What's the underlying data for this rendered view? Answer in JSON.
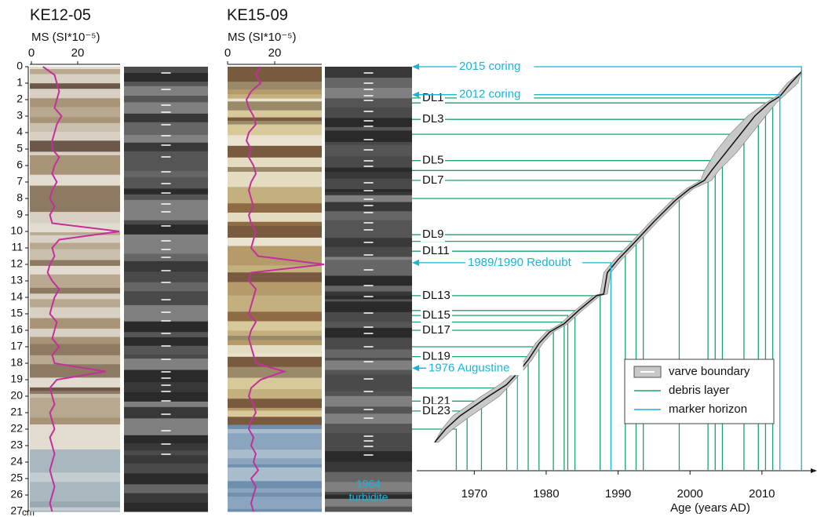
{
  "chart_data": [
    {
      "type": "line",
      "title": "KE12-05",
      "xlabel": "MS (SI*10⁻⁵)",
      "xlim": [
        0,
        39
      ],
      "xticks": [
        0,
        20
      ],
      "ylim": [
        0,
        27
      ],
      "yticks": [
        0,
        1,
        2,
        3,
        4,
        5,
        6,
        7,
        8,
        9,
        10,
        11,
        12,
        13,
        14,
        15,
        16,
        17,
        18,
        19,
        20,
        21,
        22,
        23,
        24,
        25,
        26,
        27
      ],
      "yunit": "cm",
      "series": [
        {
          "color": "#c2309b",
          "depths": [
            0,
            0.5,
            1,
            1.5,
            2,
            2.5,
            3,
            3.5,
            4,
            4.5,
            5,
            5.5,
            6,
            6.5,
            7,
            7.5,
            8,
            8.5,
            9,
            9.5,
            10,
            10.5,
            11,
            11.5,
            12,
            12.5,
            13,
            13.5,
            14,
            14.5,
            15,
            15.5,
            16,
            16.5,
            17,
            17.5,
            18,
            18.5,
            19,
            19.5,
            20,
            20.5,
            21,
            21.5,
            22,
            22.5,
            23,
            23.5,
            24,
            24.5,
            25,
            25.5,
            26,
            26.5,
            27
          ],
          "values": [
            5,
            10,
            11,
            12,
            11,
            10,
            13,
            11,
            10,
            9,
            9,
            12,
            10,
            9,
            11,
            9,
            8,
            10,
            8,
            9,
            38,
            12,
            9,
            10,
            8,
            7,
            9,
            12,
            10,
            9,
            8,
            11,
            10,
            9,
            12,
            9,
            10,
            32,
            11,
            8,
            9,
            10,
            8,
            9,
            10,
            8,
            9,
            10,
            9,
            8,
            9,
            10,
            9,
            8,
            9
          ]
        }
      ]
    },
    {
      "type": "line",
      "title": "KE15-09",
      "xlabel": "MS (SI*10⁻⁵)",
      "xlim": [
        0,
        40
      ],
      "xticks": [
        0,
        20
      ],
      "ylim": [
        0,
        27
      ],
      "series": [
        {
          "color": "#c2309b",
          "depths": [
            0,
            0.5,
            1,
            1.5,
            2,
            2.5,
            3,
            3.5,
            4,
            4.5,
            5,
            5.5,
            6,
            6.5,
            7,
            7.5,
            8,
            8.5,
            9,
            9.5,
            10,
            10.5,
            11,
            11.5,
            12,
            12.5,
            13,
            13.5,
            14,
            14.5,
            15,
            15.5,
            16,
            16.5,
            17,
            17.5,
            18,
            18.5,
            19,
            19.5,
            20,
            20.5,
            21,
            21.5,
            22,
            22.5,
            23,
            23.5,
            24,
            24.5,
            25,
            25.5,
            26,
            26.5,
            27
          ],
          "values": [
            14,
            12,
            14,
            10,
            8,
            9,
            11,
            12,
            9,
            8,
            10,
            9,
            11,
            12,
            10,
            9,
            10,
            11,
            9,
            10,
            12,
            11,
            10,
            13,
            41,
            10,
            9,
            12,
            11,
            10,
            9,
            12,
            10,
            9,
            10,
            11,
            12,
            24,
            14,
            10,
            9,
            11,
            12,
            10,
            9,
            11,
            10,
            12,
            11,
            13,
            10,
            12,
            11,
            10,
            11
          ]
        }
      ],
      "annotation_lines": [
        "1964",
        "turbidite"
      ]
    },
    {
      "type": "age-depth",
      "xlabel": "Age (years AD)",
      "xlim": [
        1962,
        2017
      ],
      "xticks": [
        1970,
        1980,
        1990,
        2000,
        2010
      ],
      "ylim": [
        0,
        27
      ],
      "curve": {
        "color": "#111111",
        "band_color": "#c8c8c8",
        "ages": [
          1964.5,
          1966,
          1968,
          1970,
          1972,
          1974.5,
          1976,
          1977.5,
          1979,
          1980.5,
          1982.5,
          1984.5,
          1987,
          1988,
          1988.5,
          1990,
          1992,
          1995,
          1998,
          2000,
          2002,
          2003,
          2005,
          2007,
          2009,
          2011,
          2012.5,
          2014,
          2015.5
        ],
        "age_min": [
          1964.5,
          1965.5,
          1967,
          1969,
          1971,
          1973.5,
          1975.5,
          1977,
          1978.5,
          1980,
          1982,
          1984,
          1986.5,
          1987.5,
          1988,
          1989.5,
          1991.5,
          1994.5,
          1997.5,
          1999.5,
          2001.5,
          2002,
          2003.5,
          2005.5,
          2008,
          2010.5,
          2012,
          2013.5,
          2015.5
        ],
        "age_max": [
          1965,
          1967,
          1969.5,
          1971.5,
          1973.5,
          1975,
          1976.5,
          1978,
          1979.5,
          1981,
          1983,
          1985,
          1987.5,
          1988.5,
          1989,
          1990.5,
          1992.5,
          1995.5,
          1998.5,
          2000.5,
          2003,
          2004,
          2006.5,
          2008.5,
          2010.5,
          2012,
          2013,
          2015,
          2015.5
        ],
        "depths": [
          22.8,
          22.0,
          21.2,
          20.6,
          20.0,
          19.3,
          18.6,
          17.8,
          16.8,
          16.1,
          15.6,
          14.8,
          13.9,
          13.8,
          12.5,
          11.7,
          10.8,
          9.4,
          8.1,
          7.4,
          6.9,
          6.3,
          5.2,
          4.1,
          3.0,
          2.2,
          1.8,
          1.0,
          0.3
        ]
      },
      "debris": {
        "color": "#1aa36a",
        "labels": [
          "DL1",
          null,
          "DL3",
          null,
          "DL5",
          null,
          "DL7",
          null,
          "DL9",
          null,
          "DL11",
          "DL13",
          null,
          "DL15",
          null,
          "DL17",
          null,
          "DL19",
          null,
          "DL21",
          "DL23",
          null
        ],
        "depths": [
          1.9,
          2.2,
          3.2,
          4.1,
          5.7,
          6.3,
          6.9,
          8.0,
          10.2,
          10.6,
          11.2,
          13.9,
          14.8,
          15.1,
          15.5,
          16.0,
          17.0,
          17.6,
          19.5,
          20.3,
          20.9,
          22.0
        ],
        "ages": [
          2011.5,
          2010.5,
          2009.5,
          2007.5,
          2004.5,
          2003.5,
          2002.5,
          1998.5,
          1993.5,
          1992.5,
          1991,
          1987.5,
          1984,
          1983,
          1982.5,
          1981,
          1979,
          1977.5,
          1974.5,
          1971,
          1969,
          1967.5
        ]
      },
      "markers": {
        "color": "#19b4d8",
        "labels": [
          "2015 coring",
          "2012 coring",
          "1989/1990 Redoubt",
          "1976 Augustine"
        ],
        "depths": [
          0.0,
          1.7,
          11.9,
          18.3
        ],
        "ages": [
          2015.5,
          2012.5,
          1989,
          1976
        ]
      },
      "legend": {
        "position": "lower right",
        "entries": [
          "varve boundary",
          "debris layer",
          "marker horizon"
        ]
      }
    }
  ]
}
